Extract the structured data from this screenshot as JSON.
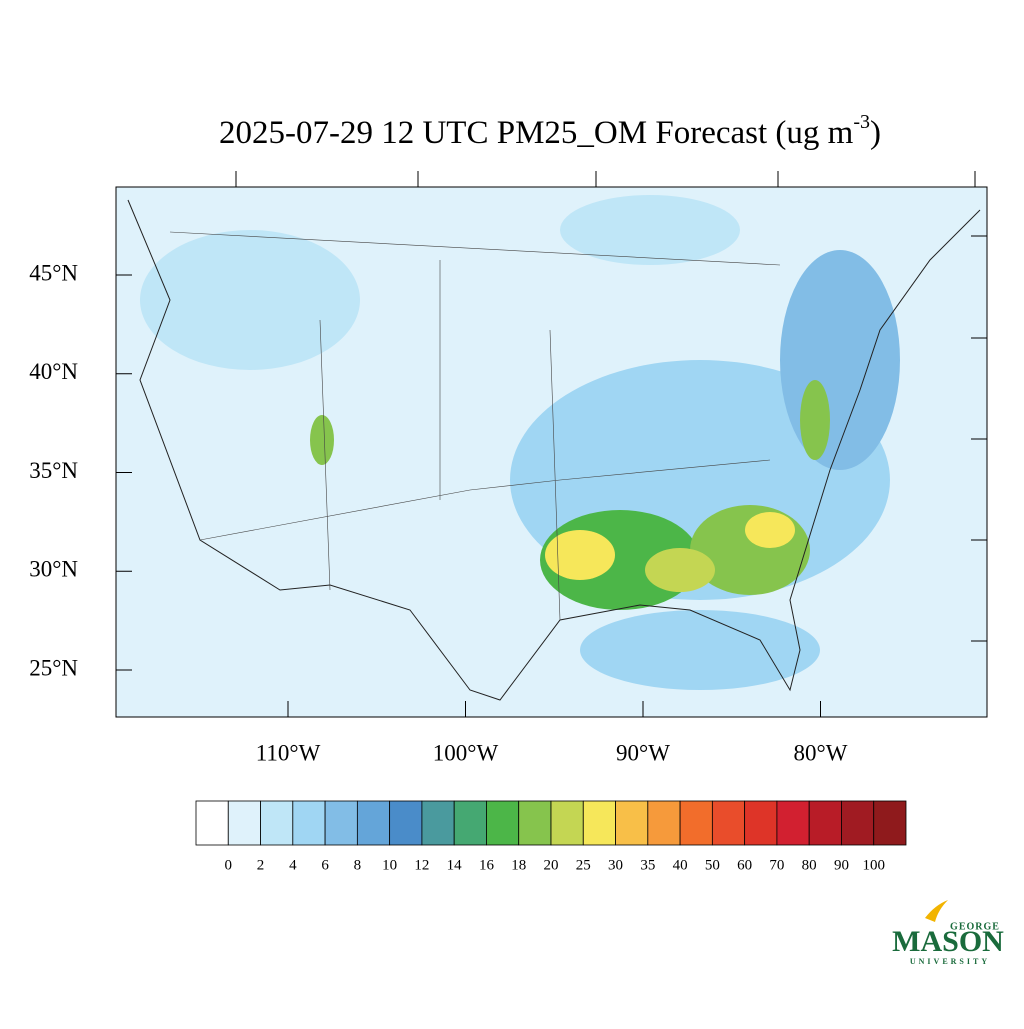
{
  "title": {
    "text": "2025-07-29 12 UTC PM25_OM Forecast (ug m",
    "exponent": "-3",
    "close": ")"
  },
  "map": {
    "lat_ticks": [
      {
        "value": 45,
        "label": "45°N"
      },
      {
        "value": 40,
        "label": "40°N"
      },
      {
        "value": 35,
        "label": "35°N"
      },
      {
        "value": 30,
        "label": "30°N"
      },
      {
        "value": 25,
        "label": "25°N"
      }
    ],
    "lon_ticks": [
      {
        "value": -110,
        "label": "110°W"
      },
      {
        "value": -100,
        "label": "100°W"
      },
      {
        "value": -90,
        "label": "90°W"
      },
      {
        "value": -80,
        "label": "80°W"
      }
    ]
  },
  "colorbar": {
    "levels": [
      0,
      2,
      4,
      6,
      8,
      10,
      12,
      14,
      16,
      18,
      20,
      25,
      30,
      35,
      40,
      50,
      60,
      70,
      80,
      90,
      100
    ],
    "colors": [
      "#ffffff",
      "#dff2fb",
      "#bfe6f7",
      "#a0d6f3",
      "#82bde6",
      "#64a5d9",
      "#4a8cc9",
      "#4a9a9e",
      "#45a872",
      "#4cb648",
      "#86c44d",
      "#c4d653",
      "#f6e75a",
      "#f8bf48",
      "#f69a3b",
      "#f26d2b",
      "#e94d2b",
      "#de3428",
      "#d22030",
      "#b81c27",
      "#a01b22",
      "#8f1a1c"
    ]
  },
  "logo": {
    "top": "GEORGE",
    "main": "MASON",
    "bottom": "UNIVERSITY"
  }
}
